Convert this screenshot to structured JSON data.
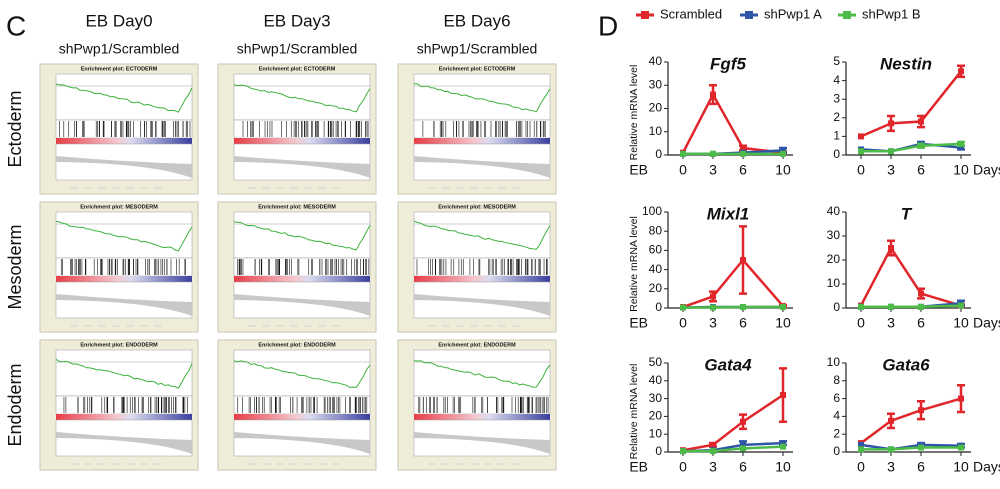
{
  "panel_labels": [
    "C",
    "D"
  ],
  "gsea": {
    "columns": [
      {
        "day": "EB Day0",
        "comparison": "shPwp1/Scrambled"
      },
      {
        "day": "EB Day3",
        "comparison": "shPwp1/Scrambled"
      },
      {
        "day": "EB Day6",
        "comparison": "shPwp1/Scrambled"
      }
    ],
    "rows": [
      {
        "label": "Ectoderm",
        "plot_title": "Enrichment plot: ECTODERM"
      },
      {
        "label": "Mesoderm",
        "plot_title": "Enrichment plot: MESODERM"
      },
      {
        "label": "Endoderm",
        "plot_title": "Enrichment plot: ENDODERM"
      }
    ]
  },
  "chart_data": [
    {
      "type": "line",
      "title": "Fgf5",
      "ylabel": "Relative mRNA level",
      "xlabel": "EB",
      "x": [
        0,
        3,
        6,
        10
      ],
      "xlim": [
        -1.5,
        11
      ],
      "xticks": [
        0,
        3,
        6,
        10
      ],
      "ylim": [
        0,
        40
      ],
      "yticks": [
        0,
        10,
        20,
        30,
        40
      ],
      "series": [
        {
          "name": "Scrambled",
          "color": "#e0262a",
          "values": [
            1,
            26,
            3,
            1
          ],
          "errors": [
            0,
            4,
            1,
            0.5
          ]
        },
        {
          "name": "shPwp1 A",
          "color": "#2f56a6",
          "values": [
            0.5,
            0.5,
            1,
            2
          ],
          "errors": [
            0,
            0,
            0,
            1
          ]
        },
        {
          "name": "shPwp1 B",
          "color": "#4cbb47",
          "values": [
            0.5,
            0.5,
            0.5,
            0.5
          ],
          "errors": [
            0,
            0,
            0,
            0
          ]
        }
      ]
    },
    {
      "type": "line",
      "title": "Nestin",
      "xlabel": "Days",
      "x": [
        0,
        3,
        6,
        10
      ],
      "xlim": [
        -1.5,
        11
      ],
      "xticks": [
        0,
        3,
        6,
        10
      ],
      "ylim": [
        0,
        5
      ],
      "yticks": [
        0,
        1,
        2,
        3,
        4,
        5
      ],
      "series": [
        {
          "name": "Scrambled",
          "color": "#e0262a",
          "values": [
            1,
            1.7,
            1.8,
            4.5
          ],
          "errors": [
            0,
            0.4,
            0.3,
            0.3
          ]
        },
        {
          "name": "shPwp1 A",
          "color": "#2f56a6",
          "values": [
            0.3,
            0.2,
            0.6,
            0.4
          ],
          "errors": [
            0,
            0,
            0.1,
            0.1
          ]
        },
        {
          "name": "shPwp1 B",
          "color": "#4cbb47",
          "values": [
            0.2,
            0.2,
            0.5,
            0.6
          ],
          "errors": [
            0,
            0,
            0.1,
            0.1
          ]
        }
      ]
    },
    {
      "type": "line",
      "title": "Mixl1",
      "ylabel": "Relative mRNA level",
      "xlabel": "EB",
      "x": [
        0,
        3,
        6,
        10
      ],
      "xlim": [
        -1.5,
        11
      ],
      "xticks": [
        0,
        3,
        6,
        10
      ],
      "ylim": [
        0,
        100
      ],
      "yticks": [
        0,
        20,
        40,
        60,
        80,
        100
      ],
      "series": [
        {
          "name": "Scrambled",
          "color": "#e0262a",
          "values": [
            1,
            12,
            50,
            2
          ],
          "errors": [
            0,
            5,
            35,
            1
          ]
        },
        {
          "name": "shPwp1 A",
          "color": "#2f56a6",
          "values": [
            0.5,
            1,
            1,
            1
          ],
          "errors": [
            0,
            0,
            0,
            0
          ]
        },
        {
          "name": "shPwp1 B",
          "color": "#4cbb47",
          "values": [
            0.5,
            0.5,
            1,
            1
          ],
          "errors": [
            0,
            0,
            0,
            0
          ]
        }
      ]
    },
    {
      "type": "line",
      "title": "T",
      "xlabel": "Days",
      "x": [
        0,
        3,
        6,
        10
      ],
      "xlim": [
        -1.5,
        11
      ],
      "xticks": [
        0,
        3,
        6,
        10
      ],
      "ylim": [
        0,
        40
      ],
      "yticks": [
        0,
        10,
        20,
        30,
        40
      ],
      "series": [
        {
          "name": "Scrambled",
          "color": "#e0262a",
          "values": [
            1,
            25,
            6,
            1
          ],
          "errors": [
            0,
            3,
            2,
            0.5
          ]
        },
        {
          "name": "shPwp1 A",
          "color": "#2f56a6",
          "values": [
            0.5,
            0.5,
            0.5,
            2
          ],
          "errors": [
            0,
            0,
            0,
            1
          ]
        },
        {
          "name": "shPwp1 B",
          "color": "#4cbb47",
          "values": [
            0.5,
            0.5,
            0.5,
            1
          ],
          "errors": [
            0,
            0,
            0,
            0
          ]
        }
      ]
    },
    {
      "type": "line",
      "title": "Gata4",
      "ylabel": "Relative mRNA level",
      "xlabel": "EB",
      "x": [
        0,
        3,
        6,
        10
      ],
      "xlim": [
        -1.5,
        11
      ],
      "xticks": [
        0,
        3,
        6,
        10
      ],
      "ylim": [
        0,
        50
      ],
      "yticks": [
        0,
        10,
        20,
        30,
        40,
        50
      ],
      "series": [
        {
          "name": "Scrambled",
          "color": "#e0262a",
          "values": [
            1,
            4,
            17,
            32
          ],
          "errors": [
            0,
            1,
            4,
            15
          ]
        },
        {
          "name": "shPwp1 A",
          "color": "#2f56a6",
          "values": [
            0.5,
            1,
            4,
            5
          ],
          "errors": [
            0,
            0,
            2,
            1
          ]
        },
        {
          "name": "shPwp1 B",
          "color": "#4cbb47",
          "values": [
            0.5,
            0.5,
            2,
            3
          ],
          "errors": [
            0,
            0,
            0,
            0
          ]
        }
      ]
    },
    {
      "type": "line",
      "title": "Gata6",
      "xlabel": "Days",
      "x": [
        0,
        3,
        6,
        10
      ],
      "xlim": [
        -1.5,
        11
      ],
      "xticks": [
        0,
        3,
        6,
        10
      ],
      "ylim": [
        0,
        10
      ],
      "yticks": [
        0,
        2,
        4,
        6,
        8,
        10
      ],
      "series": [
        {
          "name": "Scrambled",
          "color": "#e0262a",
          "values": [
            1,
            3.5,
            4.7,
            6
          ],
          "errors": [
            0,
            0.8,
            1,
            1.5
          ]
        },
        {
          "name": "shPwp1 A",
          "color": "#2f56a6",
          "values": [
            0.8,
            0.3,
            0.8,
            0.7
          ],
          "errors": [
            0,
            0,
            0.2,
            0.2
          ]
        },
        {
          "name": "shPwp1 B",
          "color": "#4cbb47",
          "values": [
            0.3,
            0.3,
            0.5,
            0.5
          ],
          "errors": [
            0,
            0,
            0,
            0
          ]
        }
      ]
    }
  ]
}
